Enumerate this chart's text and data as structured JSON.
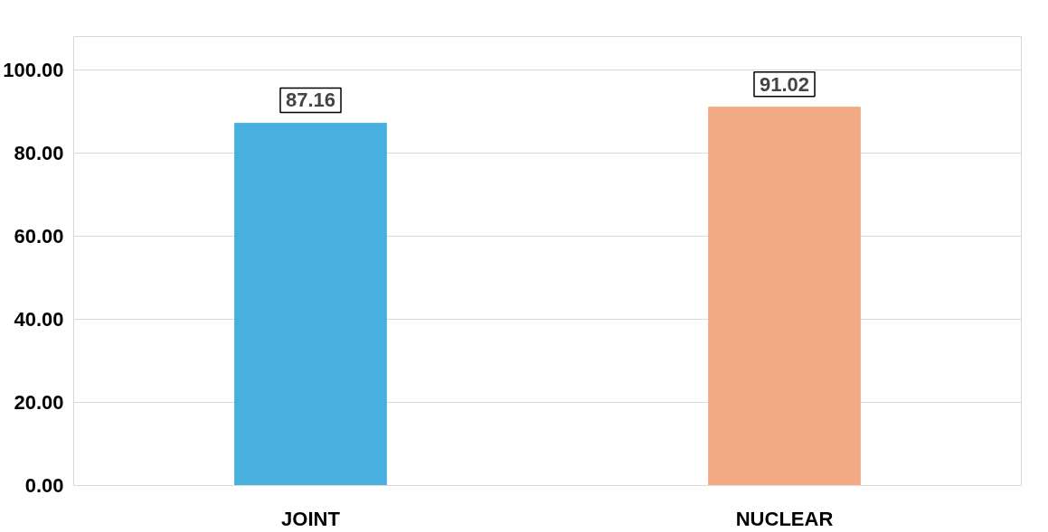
{
  "chart_data": {
    "type": "bar",
    "categories": [
      "JOINT",
      "NUCLEAR"
    ],
    "values": [
      87.16,
      91.02
    ],
    "colors": [
      "#47b0df",
      "#f2aa85"
    ],
    "value_labels": [
      "87.16",
      "91.02"
    ],
    "ylim": [
      0,
      108
    ],
    "yticks": [
      {
        "value": 0,
        "label": "0.00"
      },
      {
        "value": 20,
        "label": "20.00"
      },
      {
        "value": 40,
        "label": "40.00"
      },
      {
        "value": 60,
        "label": "60.00"
      },
      {
        "value": 80,
        "label": "80.00"
      },
      {
        "value": 100,
        "label": "100.00"
      }
    ],
    "grid": "y"
  }
}
